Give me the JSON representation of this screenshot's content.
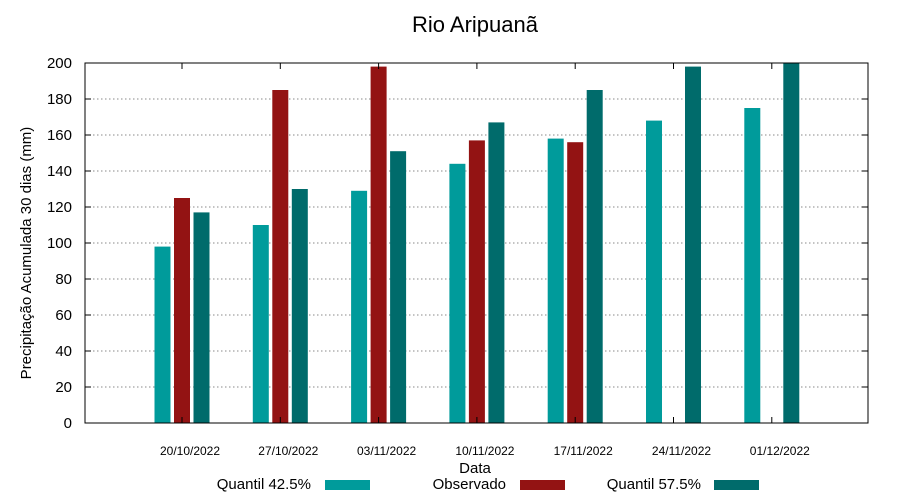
{
  "chart_data": {
    "type": "bar",
    "title": "Rio Aripuanã",
    "xlabel": "Data",
    "ylabel": "Precipitação Acumulada 30 dias (mm)",
    "ylim": [
      0,
      200
    ],
    "yticks": [
      0,
      20,
      40,
      60,
      80,
      100,
      120,
      140,
      160,
      180,
      200
    ],
    "grid": true,
    "legend_position": "bottom",
    "categories": [
      "20/10/2022",
      "27/10/2022",
      "03/11/2022",
      "10/11/2022",
      "17/11/2022",
      "24/11/2022",
      "01/12/2022"
    ],
    "series": [
      {
        "name": "Quantil 42.5%",
        "color": "#009b9b",
        "values": [
          98,
          110,
          129,
          144,
          158,
          168,
          175
        ]
      },
      {
        "name": "Observado",
        "color": "#931313",
        "values": [
          125,
          185,
          198,
          157,
          156,
          null,
          null
        ]
      },
      {
        "name": "Quantil 57.5%",
        "color": "#006b6b",
        "values": [
          117,
          130,
          151,
          167,
          185,
          198,
          200
        ]
      }
    ]
  }
}
